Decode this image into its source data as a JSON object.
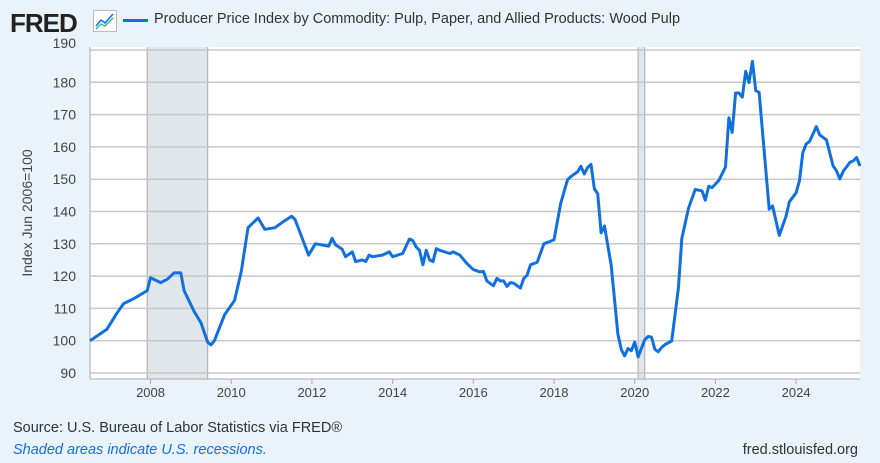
{
  "header": {
    "logo": "FRED",
    "title": "Producer Price Index by Commodity: Pulp, Paper, and Allied Products: Wood Pulp"
  },
  "footer": {
    "source": "Source: U.S. Bureau of Labor Statistics via FRED®",
    "recession_note": "Shaded areas indicate U.S. recessions.",
    "site": "fred.stlouisfed.org"
  },
  "colors": {
    "line": "#1170e0",
    "recession": "#e1e6eb",
    "grid": "#c8c8c8",
    "background": "#eaf2fa"
  },
  "chart_data": {
    "type": "line",
    "title": "Producer Price Index by Commodity: Pulp, Paper, and Allied Products: Wood Pulp",
    "ylabel": "Index Jun 2006=100",
    "xlabel": "",
    "xlim": [
      "2006-07",
      "2025-08"
    ],
    "ylim": [
      90,
      190
    ],
    "yticks": [
      90,
      100,
      110,
      120,
      130,
      140,
      150,
      160,
      170,
      180,
      190
    ],
    "xticks": [
      "2008",
      "2010",
      "2012",
      "2014",
      "2016",
      "2018",
      "2020",
      "2022",
      "2024"
    ],
    "grid": true,
    "legend": "top",
    "recessions": [
      [
        "2007-12",
        "2009-06"
      ],
      [
        "2020-02",
        "2020-04"
      ]
    ],
    "series": [
      {
        "name": "Producer Price Index by Commodity: Pulp, Paper, and Allied Products: Wood Pulp",
        "x": [
          "2006-07",
          "2006-12",
          "2007-03",
          "2007-05",
          "2007-08",
          "2007-12",
          "2008-01",
          "2008-04",
          "2008-06",
          "2008-08",
          "2008-10",
          "2008-11",
          "2009-02",
          "2009-04",
          "2009-06",
          "2009-07",
          "2009-08",
          "2009-11",
          "2010-02",
          "2010-04",
          "2010-06",
          "2010-09",
          "2010-11",
          "2011-02",
          "2011-04",
          "2011-07",
          "2011-08",
          "2011-12",
          "2012-02",
          "2012-06",
          "2012-07",
          "2012-08",
          "2012-10",
          "2012-11",
          "2013-01",
          "2013-02",
          "2013-04",
          "2013-05",
          "2013-06",
          "2013-07",
          "2013-10",
          "2013-12",
          "2014-01",
          "2014-04",
          "2014-06",
          "2014-07",
          "2014-08",
          "2014-09",
          "2014-10",
          "2014-11",
          "2014-12",
          "2015-01",
          "2015-02",
          "2015-03",
          "2015-06",
          "2015-07",
          "2015-09",
          "2015-11",
          "2016-01",
          "2016-03",
          "2016-04",
          "2016-05",
          "2016-07",
          "2016-08",
          "2016-09",
          "2016-10",
          "2016-11",
          "2016-12",
          "2017-01",
          "2017-03",
          "2017-04",
          "2017-05",
          "2017-06",
          "2017-08",
          "2017-10",
          "2018-01",
          "2018-03",
          "2018-05",
          "2018-06",
          "2018-08",
          "2018-09",
          "2018-10",
          "2018-11",
          "2018-12",
          "2019-01",
          "2019-02",
          "2019-03",
          "2019-04",
          "2019-06",
          "2019-08",
          "2019-09",
          "2019-10",
          "2019-11",
          "2019-12",
          "2020-01",
          "2020-02",
          "2020-04",
          "2020-05",
          "2020-06",
          "2020-07",
          "2020-08",
          "2020-09",
          "2020-10",
          "2020-12",
          "2021-02",
          "2021-03",
          "2021-05",
          "2021-07",
          "2021-09",
          "2021-10",
          "2021-11",
          "2021-12",
          "2022-02",
          "2022-04",
          "2022-05",
          "2022-06",
          "2022-07",
          "2022-08",
          "2022-09",
          "2022-10",
          "2022-11",
          "2022-12",
          "2023-01",
          "2023-02",
          "2023-05",
          "2023-06",
          "2023-08",
          "2023-10",
          "2023-11",
          "2024-01",
          "2024-02",
          "2024-03",
          "2024-04",
          "2024-05",
          "2024-07",
          "2024-08",
          "2024-10",
          "2024-12",
          "2025-01",
          "2025-02",
          "2025-03",
          "2025-05",
          "2025-06",
          "2025-07",
          "2025-08"
        ],
        "y": [
          100,
          103.5,
          108.5,
          111.5,
          113,
          115.5,
          119.5,
          118,
          119,
          121,
          121,
          115.5,
          109,
          105.5,
          99.5,
          98.7,
          100,
          108,
          112.5,
          121.5,
          135,
          138,
          134.5,
          135,
          136.5,
          138.5,
          137.5,
          126.5,
          130,
          129.3,
          131.7,
          129.7,
          128.3,
          126,
          127.5,
          124.5,
          125,
          124.5,
          126.5,
          126,
          126.5,
          127.5,
          126,
          127,
          131.5,
          131,
          129,
          128,
          123.5,
          128,
          125,
          124.5,
          128.5,
          128,
          127,
          127.5,
          126.5,
          124,
          122,
          121.3,
          121.5,
          118.5,
          117,
          119.3,
          118.5,
          118.5,
          116.8,
          118,
          117.8,
          116.3,
          119.3,
          120.3,
          123.5,
          124.3,
          130,
          131.2,
          142.5,
          149.8,
          150.8,
          152.3,
          154,
          151.6,
          153.6,
          154.6,
          147,
          145.5,
          133.4,
          135.5,
          123.3,
          102,
          97.3,
          95.3,
          97.6,
          96.9,
          99.6,
          95,
          100.3,
          101.3,
          101.1,
          97.3,
          96.6,
          97.9,
          98.8,
          99.9,
          116.3,
          131.6,
          141,
          146.8,
          146.4,
          143.5,
          147.8,
          147.4,
          149.6,
          153.8,
          169,
          164.5,
          176.7,
          176.7,
          175.4,
          183.4,
          179.9,
          186.5,
          177.4,
          176.9,
          140.7,
          141.7,
          132.6,
          138.5,
          143,
          145.8,
          149.6,
          158.2,
          160.9,
          161.7,
          166.3,
          163.7,
          162.2,
          154.1,
          152.6,
          150.1,
          152.4,
          155.2,
          155.7,
          156.7,
          154.1
        ]
      }
    ]
  }
}
